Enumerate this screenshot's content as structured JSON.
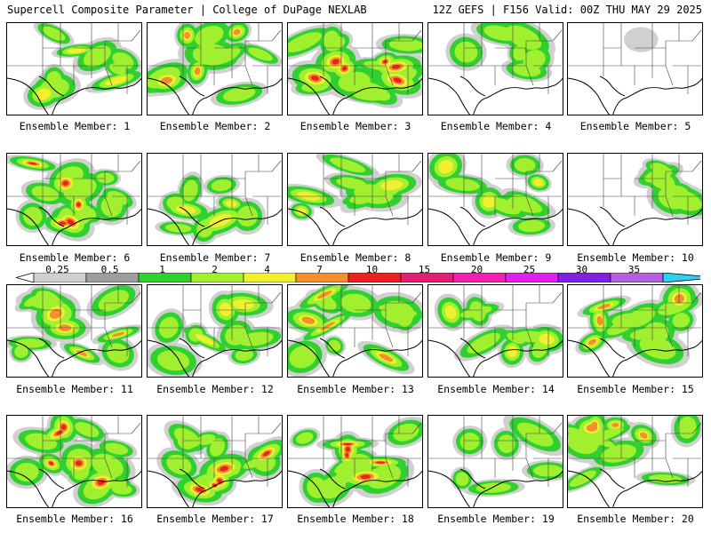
{
  "header": {
    "title_left": "Supercell Composite Parameter | College of DuPage NEXLAB",
    "title_right": "12Z GEFS | F156 Valid: 00Z THU MAY 29 2025"
  },
  "colorbar": {
    "labels": [
      "0.25",
      "0.5",
      "1",
      "2",
      "4",
      "7",
      "10",
      "15",
      "20",
      "25",
      "30",
      "35"
    ],
    "colors": [
      "#d0d0d0",
      "#9e9e9e",
      "#30d030",
      "#a0f030",
      "#f0f030",
      "#f09030",
      "#f02020",
      "#e02070",
      "#f020b0",
      "#e020f0",
      "#8020e0",
      "#b060e0",
      "#30d0f0"
    ]
  },
  "members": [
    {
      "label": "Ensemble Member: 1",
      "intensity": 2
    },
    {
      "label": "Ensemble Member: 2",
      "intensity": 3
    },
    {
      "label": "Ensemble Member: 3",
      "intensity": 5
    },
    {
      "label": "Ensemble Member: 4",
      "intensity": 1
    },
    {
      "label": "Ensemble Member: 5",
      "intensity": 0
    },
    {
      "label": "Ensemble Member: 6",
      "intensity": 4
    },
    {
      "label": "Ensemble Member: 7",
      "intensity": 2
    },
    {
      "label": "Ensemble Member: 8",
      "intensity": 2
    },
    {
      "label": "Ensemble Member: 9",
      "intensity": 2
    },
    {
      "label": "Ensemble Member: 10",
      "intensity": 1
    },
    {
      "label": "Ensemble Member: 11",
      "intensity": 3
    },
    {
      "label": "Ensemble Member: 12",
      "intensity": 2
    },
    {
      "label": "Ensemble Member: 13",
      "intensity": 3
    },
    {
      "label": "Ensemble Member: 14",
      "intensity": 2
    },
    {
      "label": "Ensemble Member: 15",
      "intensity": 3
    },
    {
      "label": "Ensemble Member: 16",
      "intensity": 4
    },
    {
      "label": "Ensemble Member: 17",
      "intensity": 4
    },
    {
      "label": "Ensemble Member: 18",
      "intensity": 4
    },
    {
      "label": "Ensemble Member: 19",
      "intensity": 1
    },
    {
      "label": "Ensemble Member: 20",
      "intensity": 3
    }
  ]
}
